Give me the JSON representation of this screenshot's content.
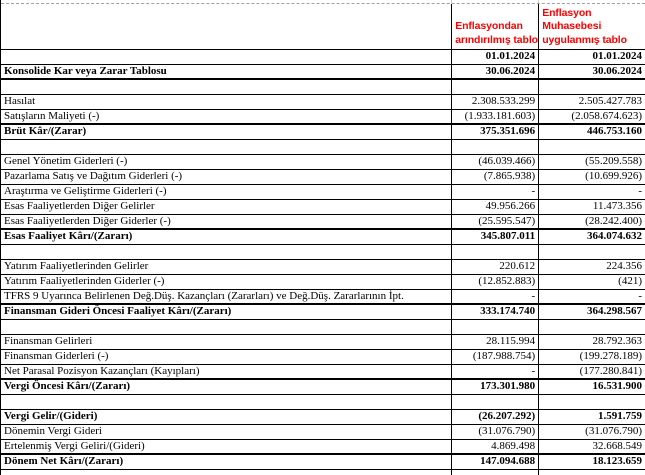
{
  "sheet": {
    "colors": {
      "header_red": "#FF0000",
      "grid_border": "#000000"
    },
    "header": {
      "col2_lines": [
        "Enflasyondan",
        "arındırılmış tablo"
      ],
      "col3_lines": [
        "Enflasyon",
        "Muhasebesi",
        "uygulanmış tablo"
      ]
    },
    "date_row": {
      "col2": "01.01.2024",
      "col3": "01.01.2024"
    },
    "title_row": {
      "label": "Konsolide Kar veya Zarar Tablosu",
      "col2": "30.06.2024",
      "col3": "30.06.2024"
    },
    "rows": [
      {
        "empty": true
      },
      {
        "label": "Hasılat",
        "v1": "2.308.533.299",
        "v2": "2.505.427.783"
      },
      {
        "label": "Satışların Maliyeti (-)",
        "v1": "(1.933.181.603)",
        "v2": "(2.058.674.623)",
        "thick": true
      },
      {
        "label": "Brüt Kâr/(Zarar)",
        "v1": "375.351.696",
        "v2": "446.753.160",
        "bold": true
      },
      {
        "empty": true
      },
      {
        "label": "Genel Yönetim Giderleri (-)",
        "v1": "(46.039.466)",
        "v2": "(55.209.558)"
      },
      {
        "label": "Pazarlama Satış ve Dağıtım Giderleri (-)",
        "v1": "(7.865.938)",
        "v2": "(10.699.926)"
      },
      {
        "label": "Araştırma ve Geliştirme Giderleri (-)",
        "v1": "-",
        "v2": "-"
      },
      {
        "label": "Esas Faaliyetlerden Diğer Gelirler",
        "v1": "49.956.266",
        "v2": "11.473.356"
      },
      {
        "label": "Esas Faaliyetlerden Diğer Giderler (-)",
        "v1": "(25.595.547)",
        "v2": "(28.242.400)",
        "thick": true
      },
      {
        "label": "Esas Faaliyet Kârı/(Zararı)",
        "v1": "345.807.011",
        "v2": "364.074.632",
        "bold": true
      },
      {
        "empty": true
      },
      {
        "label": "Yatırım Faaliyetlerinden Gelirler",
        "v1": "220.612",
        "v2": "224.356"
      },
      {
        "label": "Yatırım Faaliyetlerinden Giderler (-)",
        "v1": "(12.852.883)",
        "v2": "(421)"
      },
      {
        "label": "TFRS 9 Uyarınca Belirlenen Değ.Düş. Kazançları (Zararları) ve Değ.Düş. Zararlarının İpt.",
        "v1": "-",
        "v2": "-",
        "thick": true
      },
      {
        "label": "Finansman Gideri Öncesi Faaliyet Kârı/(Zararı)",
        "v1": "333.174.740",
        "v2": "364.298.567",
        "bold": true
      },
      {
        "empty": true
      },
      {
        "label": "Finansman Gelirleri",
        "v1": "28.115.994",
        "v2": "28.792.363"
      },
      {
        "label": "Finansman Giderleri (-)",
        "v1": "(187.988.754)",
        "v2": "(199.278.189)"
      },
      {
        "label": "Net Parasal Pozisyon Kazançları (Kayıpları)",
        "v1": "-",
        "v2": "(177.280.841)",
        "thick": true
      },
      {
        "label": "Vergi Öncesi Kârı/(Zararı)",
        "v1": "173.301.980",
        "v2": "16.531.900",
        "bold": true
      },
      {
        "empty": true
      },
      {
        "label": "Vergi Gelir/(Gideri)",
        "v1": "(26.207.292)",
        "v2": "1.591.759",
        "bold": true
      },
      {
        "label": "Dönemin Vergi Gideri",
        "v1": "(31.076.790)",
        "v2": "(31.076.790)"
      },
      {
        "label": "Ertelenmiş Vergi Geliri/(Gideri)",
        "v1": "4.869.498",
        "v2": "32.668.549",
        "thick": true
      },
      {
        "label": "Dönem Net Kârı/(Zararı)",
        "v1": "147.094.688",
        "v2": "18.123.659",
        "bold": true
      },
      {
        "empty": true,
        "partial": true
      }
    ]
  }
}
